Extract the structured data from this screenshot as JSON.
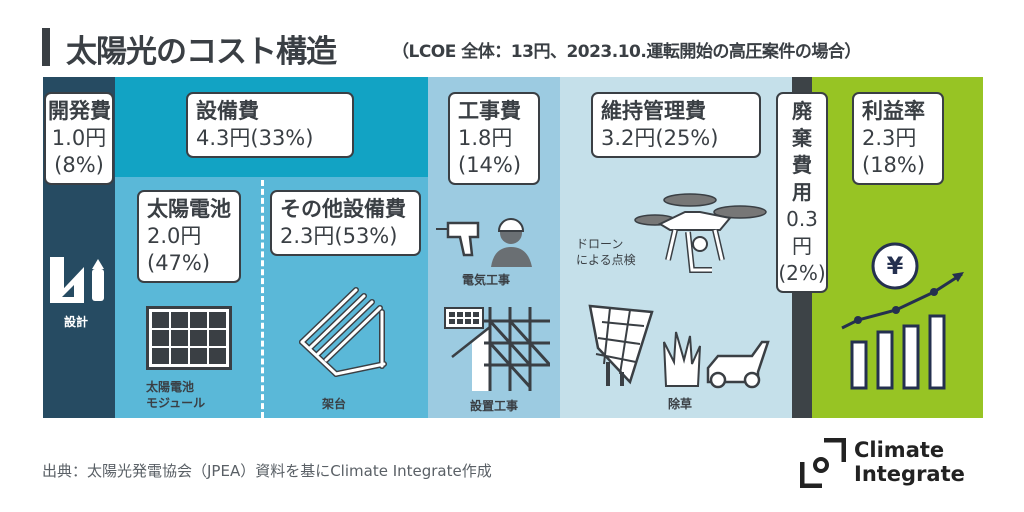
{
  "title": "太陽光のコスト構造",
  "subtitle": "（LCOE 全体：13円、2023.10.運転開始の高圧案件の場合）",
  "colors": {
    "development": "#264b62",
    "equipment_top": "#12a3c4",
    "equipment": "#5ab8d8",
    "construction": "#9ccbe1",
    "maintenance": "#c5e0ea",
    "disposal": "#3d4347",
    "profit": "#97c424"
  },
  "segments": {
    "development": {
      "name": "開発費",
      "cost": "1.0円",
      "share": "(8%)",
      "icon_label": "設計"
    },
    "equipment": {
      "name": "設備費",
      "value": "4.3円(33%)"
    },
    "solar_cells": {
      "name": "太陽電池",
      "cost": "2.0円",
      "share": "(47%)",
      "icon_label_1": "太陽電池",
      "icon_label_2": "モジュール"
    },
    "other_equipment": {
      "name": "その他設備費",
      "value": "2.3円(53%)",
      "icon_label": "架台"
    },
    "construction": {
      "name": "工事費",
      "cost": "1.8円",
      "share": "(14%)",
      "icon_label_1": "電気工事",
      "icon_label_2": "設置工事"
    },
    "maintenance": {
      "name": "維持管理費",
      "value": "3.2円(25%)",
      "icon_label_1": "ドローン",
      "icon_label_2": "による点検",
      "icon_label_3": "除草"
    },
    "disposal": {
      "chars": [
        "廃",
        "棄",
        "費",
        "用"
      ],
      "cost_num": "0.3",
      "cost_unit": "円",
      "share": "(2%)"
    },
    "profit": {
      "name": "利益率",
      "cost": "2.3円",
      "share": "(18%)",
      "yen_symbol": "¥"
    }
  },
  "footer": {
    "source": "出典：太陽光発電協会（JPEA）資料を基にClimate Integrate作成",
    "logo_line1": "Climate",
    "logo_line2": "Integrate"
  }
}
